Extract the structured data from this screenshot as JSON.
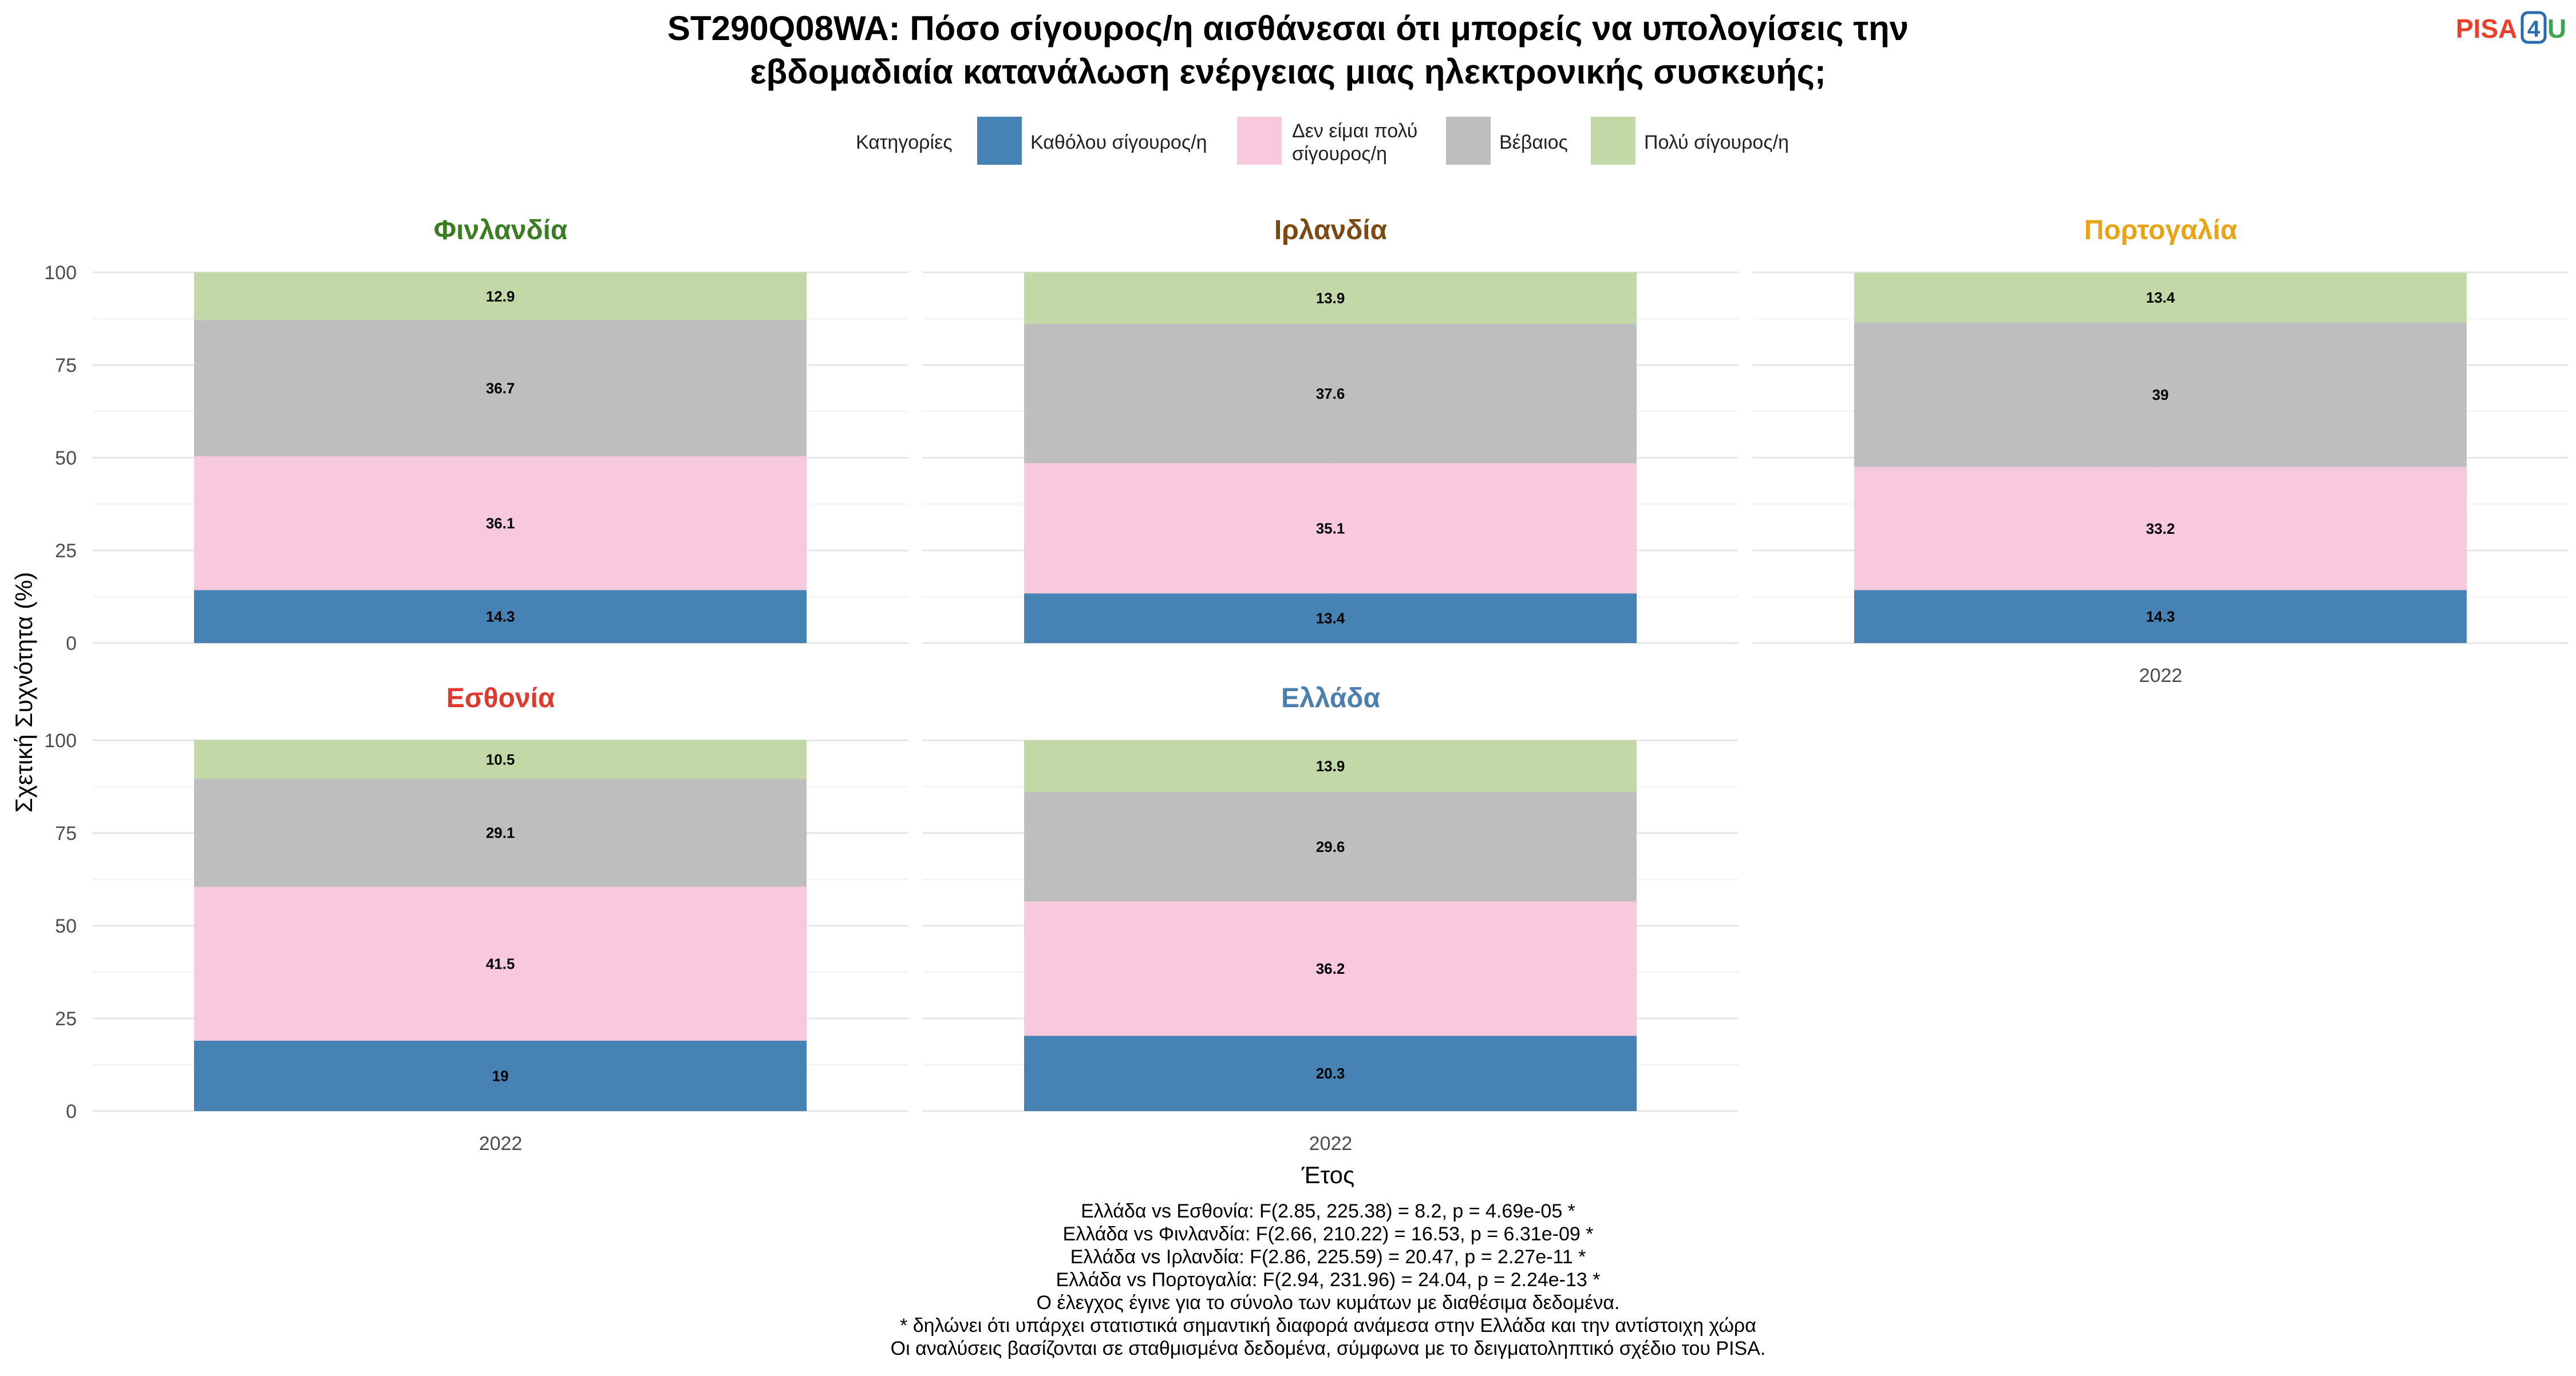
{
  "logo": {
    "prefix": "PISA",
    "digit": "4",
    "suffix": "U",
    "colors": {
      "prefix": "#e8402a",
      "digit": "#2b6cb0",
      "suffix": "#3fa34d"
    }
  },
  "chart_data": {
    "type": "bar",
    "stacked": true,
    "title_lines": [
      "ST290Q08WA: Πόσο σίγουρος/η αισθάνεσαι ότι μπορείς να υπολογίσεις την",
      "εβδομαδιαία κατανάλωση ενέργειας μιας ηλεκτρονικής συσκευής;"
    ],
    "xlabel": "Έτος",
    "ylabel": "Σχετική Συχνότητα (%)",
    "ylim": [
      0,
      100
    ],
    "yticks": [
      0,
      25,
      50,
      75,
      100
    ],
    "grid": true,
    "legend": {
      "title": "Κατηγορίες",
      "placement": "top",
      "entries": [
        {
          "lines": [
            "Καθόλου σίγουρος/η"
          ],
          "color": "#4682b4"
        },
        {
          "lines": [
            "Δεν είμαι πολύ",
            "σίγουρος/η"
          ],
          "color": "#f8c8dc"
        },
        {
          "lines": [
            "Βέβαιος"
          ],
          "color": "#bebebe"
        },
        {
          "lines": [
            "Πολύ σίγουρος/η"
          ],
          "color": "#c2d8a6"
        }
      ]
    },
    "panels": [
      {
        "name": "Φινλανδία",
        "color": "#3b7d23",
        "category": "2022",
        "show_x_tick": false,
        "values": [
          14.3,
          36.1,
          36.7,
          12.9
        ],
        "labels": [
          "14.3",
          "36.1",
          "36.7",
          "12.9"
        ]
      },
      {
        "name": "Ιρλανδία",
        "color": "#7b4a12",
        "category": "2022",
        "show_x_tick": false,
        "values": [
          13.4,
          35.1,
          37.6,
          13.9
        ],
        "labels": [
          "13.4",
          "35.1",
          "37.6",
          "13.9"
        ]
      },
      {
        "name": "Πορτογαλία",
        "color": "#e8a317",
        "category": "2022",
        "show_x_tick": true,
        "values": [
          14.3,
          33.2,
          39.0,
          13.4
        ],
        "labels": [
          "14.3",
          "33.2",
          "39",
          "13.4"
        ]
      },
      {
        "name": "Εσθονία",
        "color": "#e03a2f",
        "category": "2022",
        "show_x_tick": true,
        "values": [
          19.0,
          41.5,
          29.1,
          10.5
        ],
        "labels": [
          "19",
          "41.5",
          "29.1",
          "10.5"
        ]
      },
      {
        "name": "Ελλάδα",
        "color": "#4a7fb0",
        "category": "2022",
        "show_x_tick": true,
        "values": [
          20.3,
          36.2,
          29.6,
          13.9
        ],
        "labels": [
          "20.3",
          "36.2",
          "29.6",
          "13.9"
        ]
      }
    ],
    "caption_lines": [
      "Ελλάδα vs Εσθονία: F(2.85, 225.38) = 8.2, p = 4.69e-05 *",
      "Ελλάδα vs Φινλανδία: F(2.66, 210.22) = 16.53, p = 6.31e-09 *",
      "Ελλάδα vs Ιρλανδία: F(2.86, 225.59) = 20.47, p = 2.27e-11 *",
      "Ελλάδα vs Πορτογαλία: F(2.94, 231.96) = 24.04, p = 2.24e-13 *",
      "Ο έλεγχος έγινε για το σύνολο των κυμάτων με διαθέσιμα δεδομένα.",
      "* δηλώνει ότι υπάρχει στατιστικά σημαντική διαφορά ανάμεσα στην Ελλάδα και την αντίστοιχη χώρα",
      "Οι αναλύσεις βασίζονται σε σταθμισμένα δεδομένα, σύμφωνα με το δειγματοληπτικό σχέδιο του PISA."
    ]
  }
}
